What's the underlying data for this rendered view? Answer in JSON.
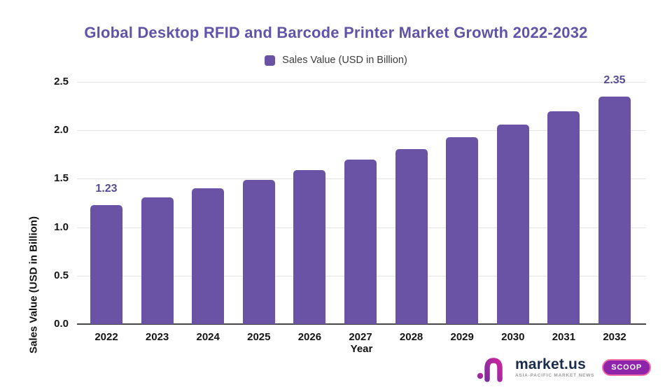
{
  "title": {
    "text": "Global Desktop RFID and Barcode Printer Market Growth 2022-2032",
    "color": "#6253a9"
  },
  "legend": {
    "label": "Sales Value (USD in Billion)",
    "swatch_color": "#6a52a5"
  },
  "chart_data": {
    "type": "bar",
    "categories": [
      "2022",
      "2023",
      "2024",
      "2025",
      "2026",
      "2027",
      "2028",
      "2029",
      "2030",
      "2031",
      "2032"
    ],
    "values": [
      1.23,
      1.31,
      1.4,
      1.49,
      1.59,
      1.7,
      1.81,
      1.93,
      2.06,
      2.2,
      2.35
    ],
    "series_name": "Sales Value (USD in Billion)",
    "title": "Global Desktop RFID and Barcode Printer Market Growth 2022-2032",
    "xlabel": "Year",
    "ylabel": "Sales Value (USD in Billion)",
    "ylim": [
      0,
      2.5
    ],
    "yticks": [
      "0.0",
      "0.5",
      "1.0",
      "1.5",
      "2.0",
      "2.5"
    ],
    "grid": true,
    "legend_position": "top",
    "bar_color": "#6a52a5",
    "value_label_color": "#584c93",
    "visible_value_labels": [
      {
        "category": "2022",
        "text": "1.23"
      },
      {
        "category": "2032",
        "text": "2.35"
      }
    ]
  },
  "footer": {
    "brand": "market.us",
    "tagline": "ASIA-PACIFIC MARKET NEWS",
    "badge": "SCOOP"
  }
}
